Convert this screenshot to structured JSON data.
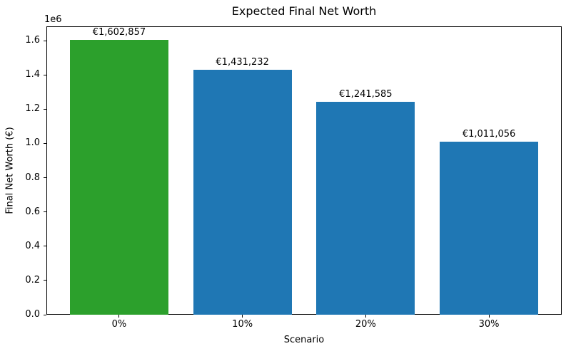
{
  "chart_data": {
    "type": "bar",
    "title": "Expected Final Net Worth",
    "xlabel": "Scenario",
    "ylabel": "Final Net Worth (€)",
    "y_offset_label": "1e6",
    "categories": [
      "0%",
      "10%",
      "20%",
      "30%"
    ],
    "values": [
      1602857,
      1431232,
      1241585,
      1011056
    ],
    "bar_labels": [
      "€1,602,857",
      "€1,431,232",
      "€1,241,585",
      "€1,011,056"
    ],
    "bar_colors": [
      "#2ca02c",
      "#1f77b4",
      "#1f77b4",
      "#1f77b4"
    ],
    "ylim": [
      0,
      1683117
    ],
    "yticks": [
      0,
      200000,
      400000,
      600000,
      800000,
      1000000,
      1200000,
      1400000,
      1600000
    ],
    "ytick_labels": [
      "0.0",
      "0.2",
      "0.4",
      "0.6",
      "0.8",
      "1.0",
      "1.2",
      "1.4",
      "1.6"
    ],
    "bar_width_fraction": 0.8,
    "grid": false,
    "legend": null,
    "text_color": "#000000",
    "background_color": "#ffffff"
  }
}
